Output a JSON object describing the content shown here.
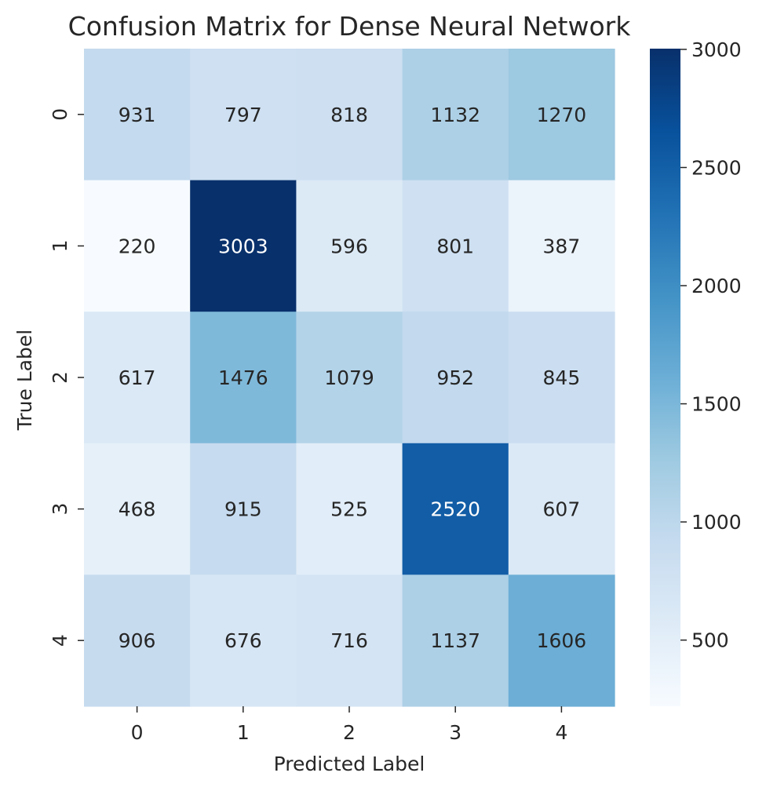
{
  "chart_data": {
    "type": "heatmap",
    "title": "Confusion Matrix for Dense Neural Network",
    "xlabel": "Predicted Label",
    "ylabel": "True Label",
    "x_categories": [
      "0",
      "1",
      "2",
      "3",
      "4"
    ],
    "y_categories": [
      "0",
      "1",
      "2",
      "3",
      "4"
    ],
    "values": [
      [
        931,
        797,
        818,
        1132,
        1270
      ],
      [
        220,
        3003,
        596,
        801,
        387
      ],
      [
        617,
        1476,
        1079,
        952,
        845
      ],
      [
        468,
        915,
        525,
        2520,
        607
      ],
      [
        906,
        676,
        716,
        1137,
        1606
      ]
    ],
    "colormap": "Blues",
    "color_range": [
      220,
      3003
    ],
    "colorbar_ticks": [
      "500",
      "1000",
      "1500",
      "2000",
      "2500",
      "3000"
    ],
    "colorbar_tick_values": [
      500,
      1000,
      1500,
      2000,
      2500,
      3000
    ],
    "colors": {
      "low": "#f7fbff",
      "high": "#08306b",
      "text_dark": "#262626",
      "text_light": "#ffffff"
    }
  }
}
